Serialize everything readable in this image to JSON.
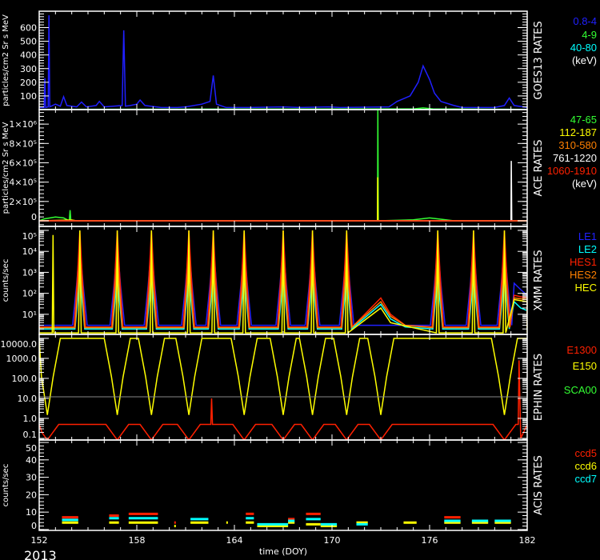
{
  "year_label": "2013",
  "chart_data": {
    "type": "line",
    "xlabel": "time (DOY)",
    "xlim": [
      152,
      182
    ],
    "xticks": [
      "152",
      "158",
      "164",
      "170",
      "176",
      "182"
    ],
    "background": "#000000",
    "panels": [
      {
        "title": "GOES13 RATES",
        "ylabel": "particles/cm2 Sr s MeV",
        "scale": "linear",
        "ylim": [
          0,
          720
        ],
        "yticks": [
          {
            "v": 100,
            "label": "100"
          },
          {
            "v": 200,
            "label": "200"
          },
          {
            "v": 300,
            "label": "300"
          },
          {
            "v": 400,
            "label": "400"
          },
          {
            "v": 500,
            "label": "500"
          },
          {
            "v": 600,
            "label": "600"
          }
        ],
        "legend_unit": "(keV)",
        "series": [
          {
            "name": "0.8-4",
            "color": "#2020ff",
            "points": [
              [
                152,
                15
              ],
              [
                152.3,
                15
              ],
              [
                152.35,
                230
              ],
              [
                152.4,
                15
              ],
              [
                152.55,
                20
              ],
              [
                152.6,
                690
              ],
              [
                152.65,
                20
              ],
              [
                153,
                40
              ],
              [
                153.3,
                25
              ],
              [
                153.5,
                95
              ],
              [
                153.7,
                30
              ],
              [
                154.3,
                20
              ],
              [
                154.6,
                55
              ],
              [
                154.9,
                20
              ],
              [
                155.5,
                30
              ],
              [
                155.7,
                60
              ],
              [
                156,
                20
              ],
              [
                157.1,
                30
              ],
              [
                157.2,
                580
              ],
              [
                157.3,
                25
              ],
              [
                157.6,
                30
              ],
              [
                158,
                40
              ],
              [
                158.2,
                70
              ],
              [
                158.5,
                30
              ],
              [
                159.5,
                15
              ],
              [
                160.5,
                15
              ],
              [
                161,
                20
              ],
              [
                162,
                40
              ],
              [
                162.5,
                60
              ],
              [
                162.7,
                250
              ],
              [
                162.9,
                40
              ],
              [
                163.5,
                15
              ],
              [
                165,
                15
              ],
              [
                167,
                20
              ],
              [
                168,
                15
              ],
              [
                169.8,
                20
              ],
              [
                170.5,
                15
              ],
              [
                173.5,
                20
              ],
              [
                174,
                60
              ],
              [
                174.8,
                100
              ],
              [
                175.3,
                200
              ],
              [
                175.6,
                320
              ],
              [
                176,
                220
              ],
              [
                176.3,
                120
              ],
              [
                176.7,
                60
              ],
              [
                177.5,
                30
              ],
              [
                178,
                15
              ],
              [
                180,
                15
              ],
              [
                180.6,
                30
              ],
              [
                180.9,
                85
              ],
              [
                181.2,
                30
              ],
              [
                182,
                15
              ]
            ]
          },
          {
            "name": "4-9",
            "color": "#33ff33",
            "points": [
              [
                152,
                2
              ],
              [
                175,
                5
              ],
              [
                175.6,
                12
              ],
              [
                176.2,
                5
              ],
              [
                182,
                2
              ]
            ]
          },
          {
            "name": "40-80",
            "color": "#00ffff",
            "points": [
              [
                152,
                1
              ],
              [
                182,
                1
              ]
            ]
          }
        ]
      },
      {
        "title": "ACE RATES",
        "ylabel": "particles/cm2 Sr s MeV",
        "scale": "linear",
        "ylim": [
          -58000,
          1150000
        ],
        "yticks": [
          {
            "v": 0,
            "label": "0"
          },
          {
            "v": 200000,
            "label": "2×10⁵"
          },
          {
            "v": 400000,
            "label": "4×10⁵"
          },
          {
            "v": 600000,
            "label": "6×10⁵"
          },
          {
            "v": 800000,
            "label": "8×10⁵"
          },
          {
            "v": 1000000,
            "label": "1×10⁶"
          }
        ],
        "legend_unit": "(keV)",
        "series": [
          {
            "name": "47-65",
            "color": "#33ff33",
            "points": [
              [
                152,
                0
              ],
              [
                152.3,
                20000
              ],
              [
                153,
                40000
              ],
              [
                153.5,
                30000
              ],
              [
                153.85,
                0
              ],
              [
                153.9,
                110000
              ],
              [
                153.95,
                0
              ],
              [
                154.5,
                0
              ],
              [
                172.8,
                0
              ],
              [
                172.82,
                1150000
              ],
              [
                172.85,
                0
              ],
              [
                175,
                10000
              ],
              [
                176,
                30000
              ],
              [
                177,
                10000
              ],
              [
                177.5,
                0
              ],
              [
                182,
                0
              ]
            ]
          },
          {
            "name": "112-187",
            "color": "#ffff00",
            "points": [
              [
                152,
                0
              ],
              [
                154,
                8000
              ],
              [
                154.3,
                0
              ],
              [
                172.8,
                0
              ],
              [
                172.81,
                450000
              ],
              [
                172.83,
                0
              ],
              [
                182,
                0
              ]
            ]
          },
          {
            "name": "310-580",
            "color": "#ff8000",
            "points": [
              [
                152,
                0
              ],
              [
                182,
                0
              ]
            ]
          },
          {
            "name": "761-1220",
            "color": "#ffffff",
            "points": [
              [
                152,
                0
              ],
              [
                181,
                0
              ],
              [
                181.02,
                620000
              ],
              [
                181.05,
                0
              ],
              [
                182,
                0
              ]
            ]
          },
          {
            "name": "1060-1910",
            "color": "#ff2000",
            "points": [
              [
                152,
                0
              ],
              [
                182,
                0
              ]
            ]
          }
        ]
      },
      {
        "title": "XMM RATES",
        "ylabel": "counts/sec",
        "scale": "log",
        "ylim": [
          1.1,
          155000
        ],
        "yticks": [
          {
            "v": 10,
            "label": "10¹"
          },
          {
            "v": 100,
            "label": "10²"
          },
          {
            "v": 1000,
            "label": "10³"
          },
          {
            "v": 10000,
            "label": "10⁴"
          },
          {
            "v": 100000,
            "label": "10⁵"
          }
        ],
        "belt_passes": [
          154.5,
          156.8,
          158.9,
          161.2,
          162.7,
          164.6,
          167.0,
          168.8,
          170.9,
          176.5,
          178.7,
          180.6
        ],
        "series": [
          {
            "name": "LE1",
            "color": "#2020ff",
            "baseline": 3,
            "peak": 20000,
            "width": 0.45,
            "extra": [
              [
                181.2,
                300
              ],
              [
                181.6,
                150
              ],
              [
                182,
                80
              ]
            ]
          },
          {
            "name": "LE2",
            "color": "#00ffff",
            "baseline": 2,
            "peak": 1000,
            "width": 0.3,
            "extra": [
              [
                173,
                30
              ],
              [
                173.6,
                6
              ],
              [
                174.5,
                2.5
              ],
              [
                181.2,
                40
              ],
              [
                181.6,
                20
              ],
              [
                182,
                15
              ]
            ]
          },
          {
            "name": "HES1",
            "color": "#ff2000",
            "baseline": 2.5,
            "peak": 100000,
            "width": 0.35,
            "extra": [
              [
                173,
                60
              ],
              [
                173.6,
                10
              ],
              [
                174.5,
                3
              ],
              [
                181.2,
                80
              ],
              [
                182,
                60
              ]
            ]
          },
          {
            "name": "HES2",
            "color": "#ff8000",
            "baseline": 2.3,
            "peak": 10000,
            "width": 0.3,
            "extra": [
              [
                173,
                40
              ],
              [
                173.6,
                8
              ],
              [
                174.5,
                3
              ],
              [
                181.2,
                60
              ],
              [
                182,
                50
              ]
            ]
          },
          {
            "name": "HEC",
            "color": "#ffff00",
            "baseline": 1.3,
            "peak": 100000,
            "width": 0.08,
            "extra": [
              [
                152.8,
                1.3
              ],
              [
                152.85,
                60000
              ],
              [
                152.9,
                1.3
              ],
              [
                173,
                20
              ],
              [
                173.6,
                4
              ],
              [
                181.2,
                50
              ],
              [
                182,
                40
              ]
            ]
          }
        ]
      },
      {
        "title": "EPHIN RATES",
        "ylabel": "",
        "scale": "log",
        "ylim": [
          0.083,
          15800
        ],
        "yticks": [
          {
            "v": 0.1,
            "label": "0.1"
          },
          {
            "v": 1,
            "label": "1.0"
          },
          {
            "v": 10,
            "label": "10.0"
          },
          {
            "v": 100,
            "label": "100.0"
          },
          {
            "v": 1000,
            "label": "1000.0"
          },
          {
            "v": 10000,
            "label": "10000.0"
          }
        ],
        "reference_line": 12,
        "belt_passes": [
          152.5,
          156.8,
          158.9,
          161.2,
          164.6,
          167.0,
          168.8,
          170.9,
          173.0,
          180.6
        ],
        "series": [
          {
            "name": "E1300",
            "color": "#ff2000",
            "baseline": 0.5,
            "peak": 0.07,
            "width": 0.7,
            "extra": [
              [
                162.55,
                0.5
              ],
              [
                162.6,
                10
              ],
              [
                162.65,
                0.5
              ],
              [
                181.45,
                0.5
              ],
              [
                181.5,
                800
              ],
              [
                181.6,
                0.1
              ]
            ]
          },
          {
            "name": "E150",
            "color": "#ffff00",
            "baseline": 10000,
            "peak": 1.5,
            "width": 0.8,
            "extra": []
          },
          {
            "name": "SCA00",
            "color": "#33ff33",
            "baseline": 0,
            "peak": 0,
            "width": 0,
            "extra": []
          }
        ]
      },
      {
        "title": "ACIS RATES",
        "ylabel": "counts/sec",
        "scale": "linear",
        "ylim": [
          -0.5,
          51.4
        ],
        "yticks": [
          {
            "v": 0,
            "label": "0"
          },
          {
            "v": 10,
            "label": "10"
          },
          {
            "v": 20,
            "label": "20"
          },
          {
            "v": 30,
            "label": "30"
          },
          {
            "v": 40,
            "label": "40"
          },
          {
            "v": 50,
            "label": "50"
          }
        ],
        "series": [
          {
            "name": "ccd5",
            "color": "#ff2000",
            "segments": [
              [
                153.4,
                154.4,
                7
              ],
              [
                156.3,
                156.9,
                8
              ],
              [
                157.5,
                159.3,
                9
              ],
              [
                160.3,
                160.4,
                4
              ],
              [
                164.7,
                165.2,
                9
              ],
              [
                167.3,
                167.7,
                6
              ],
              [
                168.4,
                169.3,
                9
              ],
              [
                176.9,
                177.9,
                7
              ]
            ]
          },
          {
            "name": "ccd6",
            "color": "#ffff00",
            "segments": [
              [
                153.4,
                154.4,
                4
              ],
              [
                156.3,
                156.9,
                4
              ],
              [
                157.5,
                159.3,
                4
              ],
              [
                160.3,
                160.4,
                2
              ],
              [
                161.3,
                162.4,
                4
              ],
              [
                163.5,
                163.6,
                4
              ],
              [
                164.7,
                165.2,
                4
              ],
              [
                165.4,
                167.3,
                2
              ],
              [
                167.3,
                167.7,
                4
              ],
              [
                168.4,
                169.3,
                3
              ],
              [
                169.3,
                170.3,
                2
              ],
              [
                171.5,
                172.2,
                4
              ],
              [
                174.4,
                175.2,
                4
              ],
              [
                176.9,
                177.9,
                4
              ],
              [
                178.6,
                179.6,
                4
              ],
              [
                180,
                181,
                4
              ]
            ]
          },
          {
            "name": "ccd7",
            "color": "#00ffff",
            "segments": [
              [
                153.4,
                154.4,
                5.5
              ],
              [
                156.3,
                156.9,
                6.5
              ],
              [
                157.5,
                159.3,
                6.5
              ],
              [
                161.3,
                162.4,
                6
              ],
              [
                164.7,
                165.2,
                6.5
              ],
              [
                165.4,
                167.3,
                3
              ],
              [
                167.3,
                167.7,
                5
              ],
              [
                168.4,
                169.3,
                6
              ],
              [
                169.3,
                170.3,
                3
              ],
              [
                171.5,
                172.2,
                3
              ],
              [
                176.9,
                177.9,
                5
              ],
              [
                178.6,
                179.6,
                5
              ],
              [
                180,
                181,
                5
              ]
            ]
          }
        ]
      }
    ]
  }
}
